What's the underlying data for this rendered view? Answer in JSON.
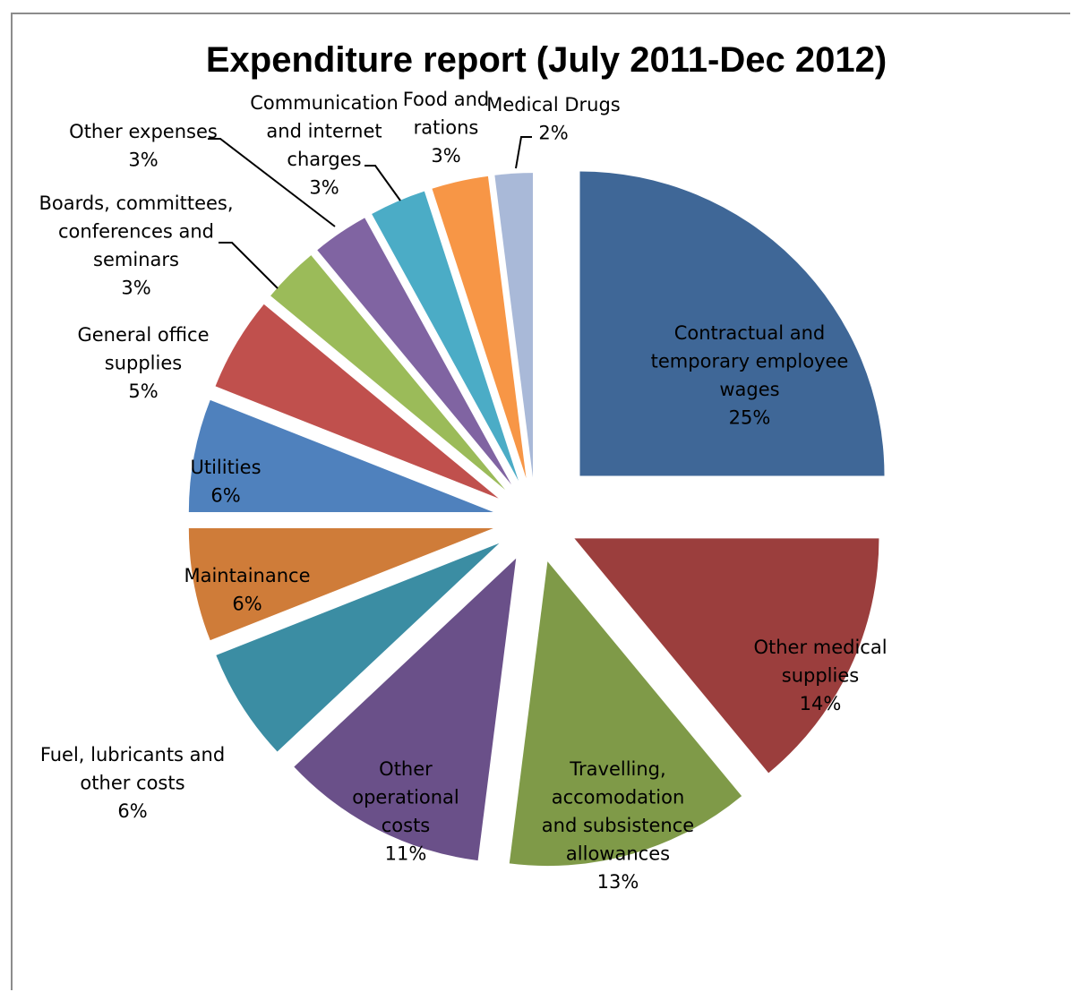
{
  "chart_data": {
    "type": "pie",
    "title": "Expenditure report (July 2011-Dec 2012)",
    "exploded": true,
    "start_angle": "12 o'clock, clockwise",
    "slices": [
      {
        "name": "Contractual and temporary employee wages",
        "value": 25,
        "label": "25%",
        "color": "#3f6797"
      },
      {
        "name": "Other medical supplies",
        "value": 14,
        "label": "14%",
        "color": "#9b3e3d"
      },
      {
        "name": "Travelling, accomodation and subsistence allowances",
        "value": 13,
        "label": "13%",
        "color": "#7f9a48"
      },
      {
        "name": "Other operational costs",
        "value": 11,
        "label": "11%",
        "color": "#6a5089"
      },
      {
        "name": "Fuel, lubricants and other costs",
        "value": 6,
        "label": "6%",
        "color": "#3b8da3"
      },
      {
        "name": "Maintainance",
        "value": 6,
        "label": "6%",
        "color": "#cf7c39"
      },
      {
        "name": "Utilities",
        "value": 6,
        "label": "6%",
        "color": "#4f81bd"
      },
      {
        "name": "General office supplies",
        "value": 5,
        "label": "5%",
        "color": "#c0504d"
      },
      {
        "name": "Boards, committees, conferences and seminars",
        "value": 3,
        "label": "3%",
        "color": "#9bbb59"
      },
      {
        "name": "Other expenses",
        "value": 3,
        "label": "3%",
        "color": "#8064a2"
      },
      {
        "name": "Communication and internet charges",
        "value": 3,
        "label": "3%",
        "color": "#4bacc6"
      },
      {
        "name": "Food and rations",
        "value": 3,
        "label": "3%",
        "color": "#f79646"
      },
      {
        "name": "Medical Drugs",
        "value": 2,
        "label": "2%",
        "color": "#a9b9d8"
      }
    ]
  }
}
